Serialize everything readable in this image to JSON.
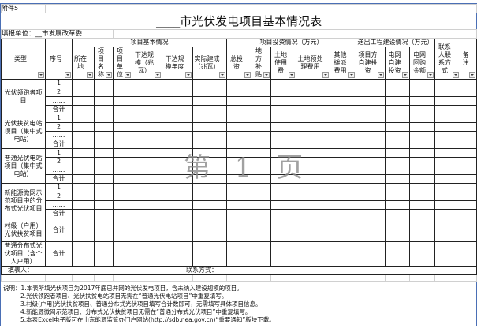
{
  "attachment": "附件5",
  "title": "____市光伏发电项目基本情况表",
  "unit_label": "填报单位：",
  "unit_value": "__市发展改革委",
  "header": {
    "type": "类型",
    "seq": "序号",
    "group_basic": "项目基本情况",
    "group_invest": "项目投资情况（万元）",
    "group_send": "送出工程建设情况（万元）",
    "contact": "联系人联系方式",
    "remark": "备注",
    "cols": [
      "所在地",
      "项目名称",
      "项目单位",
      "下达规模（兆瓦）",
      "下达规模年度",
      "实际建成（兆瓦）",
      "总投资",
      "地方补贴",
      "土地使用费",
      "土地预处理费用",
      "其他摊派费用",
      "项目方自建投资",
      "电网自建投资",
      "电网回购金额"
    ]
  },
  "groups": [
    {
      "name": "光伏领跑者项目",
      "rows": [
        "1",
        "2",
        "……",
        "合计"
      ]
    },
    {
      "name": "光伏扶贫电站项目（集中式电站）",
      "rows": [
        "1",
        "2",
        "……",
        "合计"
      ]
    },
    {
      "name": "普通光伏电站项目（集中式电站）",
      "rows": [
        "1",
        "2",
        "……",
        "合计"
      ]
    },
    {
      "name": "新能源微网示范项目中的分布式光伏项目",
      "rows": [
        "1",
        "2",
        "……",
        "合计"
      ]
    },
    {
      "name": "村级（户用）光伏扶贫项目",
      "rows": [
        "合计"
      ]
    },
    {
      "name": "普通分布式光伏项目（含个人户用）",
      "rows": [
        "合计"
      ]
    }
  ],
  "filler": "填表人：",
  "contact_way": "联系方式：",
  "notes": [
    "说明：1.本表所填光伏项目为2017年底已并网的光伏发电项目，含未纳入建设规模的项目。",
    "2.光伏领跑者项目、光伏扶贫电站项目无需在“普通光伏电站项目”中重复填写。",
    "3.村级(户用)光伏扶贫项目、普通分布式光伏项目填写合计数即可，无需填写具体项目信息。",
    "4.新能源微网示范项目、分布式光伏扶贫项目无需在“普通分布式光伏项目”中重复填写。",
    "5.本表Excel电子版可在山东能源监管办门户网站(http://sdb.nea.gov.cn)“重要通知”版块下载。"
  ],
  "watermark": "第 1 页"
}
